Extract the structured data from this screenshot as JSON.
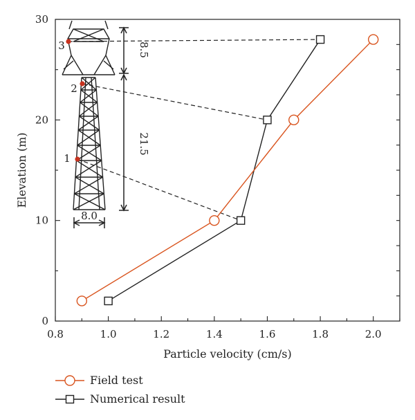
{
  "chart_data": {
    "type": "line",
    "xlabel": "Particle velocity (cm/s)",
    "ylabel": "Elevation (m)",
    "xlim": [
      0.8,
      2.1
    ],
    "ylim": [
      0,
      30
    ],
    "xticks": [
      0.8,
      1.0,
      1.2,
      1.4,
      1.6,
      1.8,
      2.0
    ],
    "xtick_labels": [
      "0.8",
      "1.0",
      "1.2",
      "1.4",
      "1.6",
      "1.8",
      "2.0"
    ],
    "yticks": [
      0,
      10,
      20,
      30
    ],
    "ytick_labels": [
      "0",
      "10",
      "20",
      "30"
    ],
    "grid": false,
    "legend_position": "bottom-left, below plot",
    "series": [
      {
        "name": "Field test",
        "marker": "circle",
        "color": "#d9541e",
        "x": [
          0.9,
          1.4,
          1.7,
          2.0
        ],
        "y": [
          2,
          10,
          20,
          28
        ]
      },
      {
        "name": "Numerical result",
        "marker": "square",
        "color": "#222222",
        "x": [
          1.0,
          1.5,
          1.6,
          1.8
        ],
        "y": [
          2,
          10,
          20,
          28
        ]
      }
    ],
    "annotations": {
      "measure_points": [
        {
          "label": "1",
          "elevation": 16
        },
        {
          "label": "2",
          "elevation": 23.5
        },
        {
          "label": "3",
          "elevation": 28
        }
      ],
      "dimensions": {
        "upper": "8.5",
        "lower": "21.5",
        "base_width": "8.0"
      },
      "point_color": "#c8321e"
    }
  }
}
